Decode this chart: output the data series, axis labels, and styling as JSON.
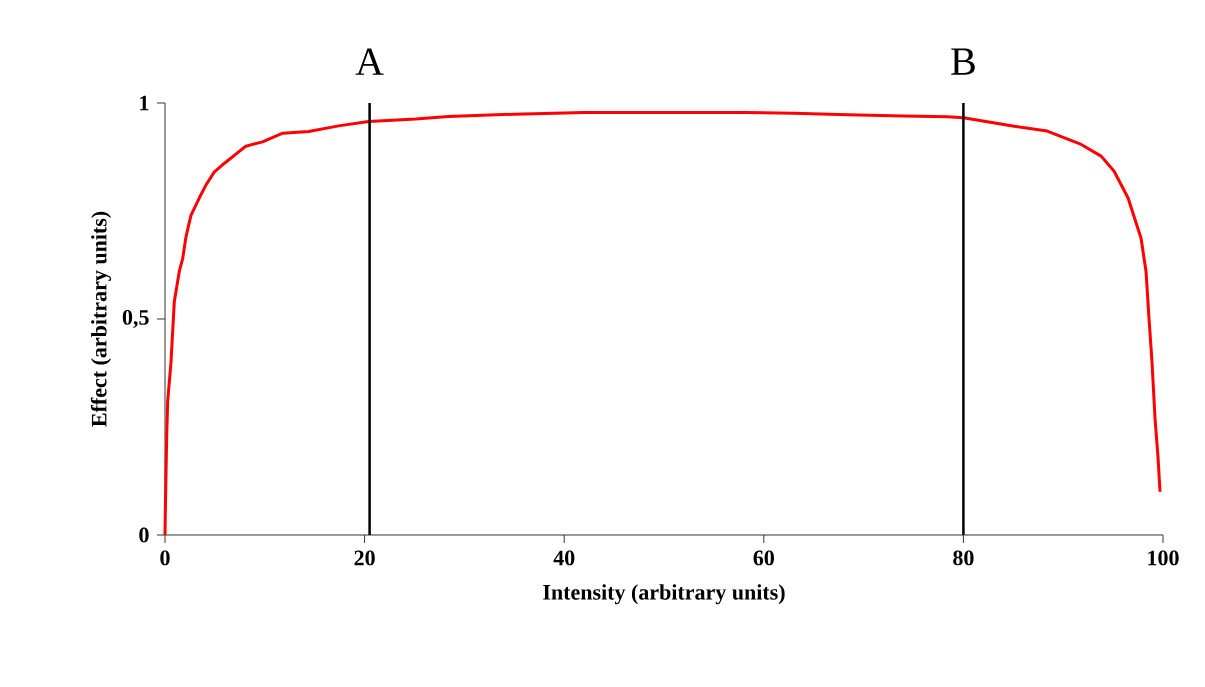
{
  "chart_data": {
    "type": "line",
    "xlabel": "Intensity (arbitrary units)",
    "ylabel": "Effect (arbitrary units)",
    "xlim": [
      0,
      100
    ],
    "ylim": [
      0,
      1
    ],
    "xticks": [
      0,
      20,
      40,
      60,
      80,
      100
    ],
    "yticks": [
      0,
      {
        "value": 0.5,
        "label": "0,5"
      },
      1
    ],
    "grid": false,
    "marker": "none",
    "line_style": "solid",
    "series": [
      {
        "color": "#ff0000",
        "x": [
          0,
          0.03,
          0.17,
          0.27,
          0.6,
          0.93,
          1.43,
          1.77,
          2.1,
          2.6,
          3.43,
          4.1,
          4.93,
          5.93,
          8.1,
          9.77,
          11.8,
          14.4,
          17.4,
          20.4,
          25.1,
          28.4,
          35,
          42,
          50,
          58,
          63,
          68.4,
          74,
          78.4,
          80,
          85.1,
          88.4,
          91.8,
          93.8,
          95.1,
          96.5,
          97.8,
          98.3,
          98.6,
          98.9,
          99.2,
          99.5,
          99.7
        ],
        "values": [
          0,
          0.05,
          0.23,
          0.31,
          0.4,
          0.54,
          0.61,
          0.64,
          0.69,
          0.74,
          0.78,
          0.81,
          0.84,
          0.86,
          0.9,
          0.91,
          0.93,
          0.934,
          0.947,
          0.957,
          0.963,
          0.969,
          0.974,
          0.978,
          0.978,
          0.978,
          0.976,
          0.973,
          0.97,
          0.968,
          0.966,
          0.946,
          0.935,
          0.904,
          0.877,
          0.842,
          0.78,
          0.687,
          0.61,
          0.5,
          0.4,
          0.27,
          0.18,
          0.1
        ]
      }
    ],
    "ref_lines": [
      {
        "axis": "x",
        "value": 20.5,
        "label": "A",
        "color": "#000000",
        "line_style": "solid"
      },
      {
        "axis": "x",
        "value": 80,
        "label": "B",
        "color": "#000000",
        "line_style": "solid"
      }
    ]
  }
}
